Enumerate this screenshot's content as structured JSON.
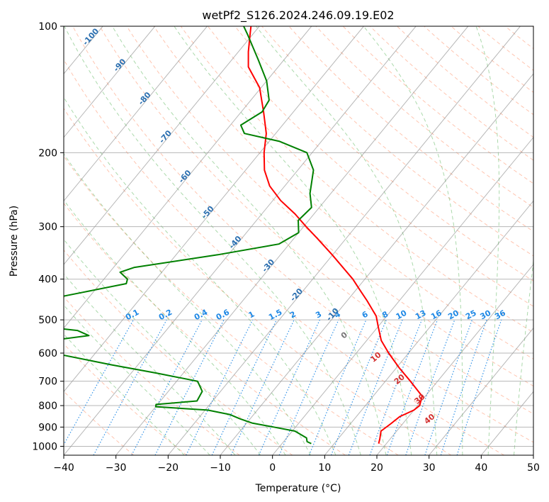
{
  "chart_data": {
    "type": "line",
    "subtype": "skew-T log-P diagram",
    "title": "wetPf2_S126.2024.246.09.19.E02",
    "xlabel": "Temperature (°C)",
    "ylabel": "Pressure (hPa)",
    "xlim": [
      -40,
      50
    ],
    "ylim": [
      1050,
      100
    ],
    "y_scale": "log",
    "x_ticks": [
      -40,
      -30,
      -20,
      -10,
      0,
      10,
      20,
      30,
      40,
      50
    ],
    "y_ticks": [
      100,
      200,
      300,
      400,
      500,
      600,
      700,
      800,
      900,
      1000
    ],
    "grid": true,
    "colors": {
      "temperature": "#ff0000",
      "dewpoint": "#008000",
      "isotherms": "#888888",
      "dry_adiabats": "#ff7f50",
      "moist_adiabats": "#2ca02c",
      "mixing_ratio": "#1e88e5",
      "labels_dry": "#2b6fb0",
      "labels_moist": "#d32f2f"
    },
    "series": [
      {
        "role": "temperature",
        "points": [
          {
            "p": 985,
            "t": 18.5
          },
          {
            "p": 960,
            "t": 18.0
          },
          {
            "p": 920,
            "t": 17.0
          },
          {
            "p": 885,
            "t": 17.7
          },
          {
            "p": 850,
            "t": 18.3
          },
          {
            "p": 820,
            "t": 20.0
          },
          {
            "p": 800,
            "t": 20.4
          },
          {
            "p": 760,
            "t": 19.4
          },
          {
            "p": 700,
            "t": 14.8
          },
          {
            "p": 650,
            "t": 10.5
          },
          {
            "p": 600,
            "t": 6.2
          },
          {
            "p": 560,
            "t": 2.8
          },
          {
            "p": 520,
            "t": 0.1
          },
          {
            "p": 490,
            "t": -2.0
          },
          {
            "p": 450,
            "t": -6.2
          },
          {
            "p": 420,
            "t": -9.8
          },
          {
            "p": 400,
            "t": -12.3
          },
          {
            "p": 350,
            "t": -20.1
          },
          {
            "p": 320,
            "t": -25.5
          },
          {
            "p": 300,
            "t": -29.5
          },
          {
            "p": 280,
            "t": -33.6
          },
          {
            "p": 260,
            "t": -38.5
          },
          {
            "p": 240,
            "t": -42.9
          },
          {
            "p": 220,
            "t": -46.4
          },
          {
            "p": 200,
            "t": -49.2
          },
          {
            "p": 180,
            "t": -51.8
          },
          {
            "p": 160,
            "t": -55.7
          },
          {
            "p": 140,
            "t": -60.3
          },
          {
            "p": 125,
            "t": -65.7
          },
          {
            "p": 115,
            "t": -68.1
          },
          {
            "p": 105,
            "t": -70.4
          },
          {
            "p": 100,
            "t": -71.6
          }
        ]
      },
      {
        "role": "dewpoint",
        "points": [
          {
            "p": 985,
            "t": 5.6
          },
          {
            "p": 975,
            "t": 4.5
          },
          {
            "p": 955,
            "t": 3.8
          },
          {
            "p": 920,
            "t": 0.5
          },
          {
            "p": 900,
            "t": -4.2
          },
          {
            "p": 880,
            "t": -9.0
          },
          {
            "p": 860,
            "t": -12.0
          },
          {
            "p": 840,
            "t": -14.6
          },
          {
            "p": 820,
            "t": -19.5
          },
          {
            "p": 805,
            "t": -30.0
          },
          {
            "p": 795,
            "t": -30.3
          },
          {
            "p": 780,
            "t": -23.0
          },
          {
            "p": 740,
            "t": -23.5
          },
          {
            "p": 700,
            "t": -26.0
          },
          {
            "p": 670,
            "t": -35.0
          },
          {
            "p": 640,
            "t": -45.0
          },
          {
            "p": 580,
            "t": -65.0
          },
          {
            "p": 568,
            "t": -64.0
          },
          {
            "p": 545,
            "t": -54.0
          },
          {
            "p": 530,
            "t": -57.0
          },
          {
            "p": 515,
            "t": -67.0
          },
          {
            "p": 470,
            "t": -75.0
          },
          {
            "p": 430,
            "t": -62.0
          },
          {
            "p": 410,
            "t": -55.0
          },
          {
            "p": 400,
            "t": -55.5
          },
          {
            "p": 385,
            "t": -58.0
          },
          {
            "p": 375,
            "t": -56.0
          },
          {
            "p": 350,
            "t": -42.0
          },
          {
            "p": 330,
            "t": -32.0
          },
          {
            "p": 310,
            "t": -30.0
          },
          {
            "p": 290,
            "t": -32.0
          },
          {
            "p": 270,
            "t": -31.5
          },
          {
            "p": 250,
            "t": -34.0
          },
          {
            "p": 220,
            "t": -37.0
          },
          {
            "p": 200,
            "t": -41.0
          },
          {
            "p": 188,
            "t": -48.0
          },
          {
            "p": 180,
            "t": -56.0
          },
          {
            "p": 172,
            "t": -58.0
          },
          {
            "p": 160,
            "t": -56.0
          },
          {
            "p": 150,
            "t": -56.5
          },
          {
            "p": 135,
            "t": -60.0
          },
          {
            "p": 120,
            "t": -65.0
          },
          {
            "p": 105,
            "t": -70.8
          },
          {
            "p": 100,
            "t": -73.0
          }
        ]
      }
    ],
    "dry_adiabat_labels": [
      "-100",
      "-90",
      "-80",
      "-70",
      "-60",
      "-50",
      "-40",
      "-30",
      "-20",
      "-10"
    ],
    "moist_adiabat_labels": [
      "0",
      "10",
      "20",
      "30",
      "40"
    ],
    "mixing_ratio_labels": [
      "0.1",
      "0.2",
      "0.4",
      "0.6",
      "1",
      "1.5",
      "2",
      "3",
      "4",
      "6",
      "8",
      "10",
      "13",
      "16",
      "20",
      "25",
      "30",
      "36"
    ]
  }
}
